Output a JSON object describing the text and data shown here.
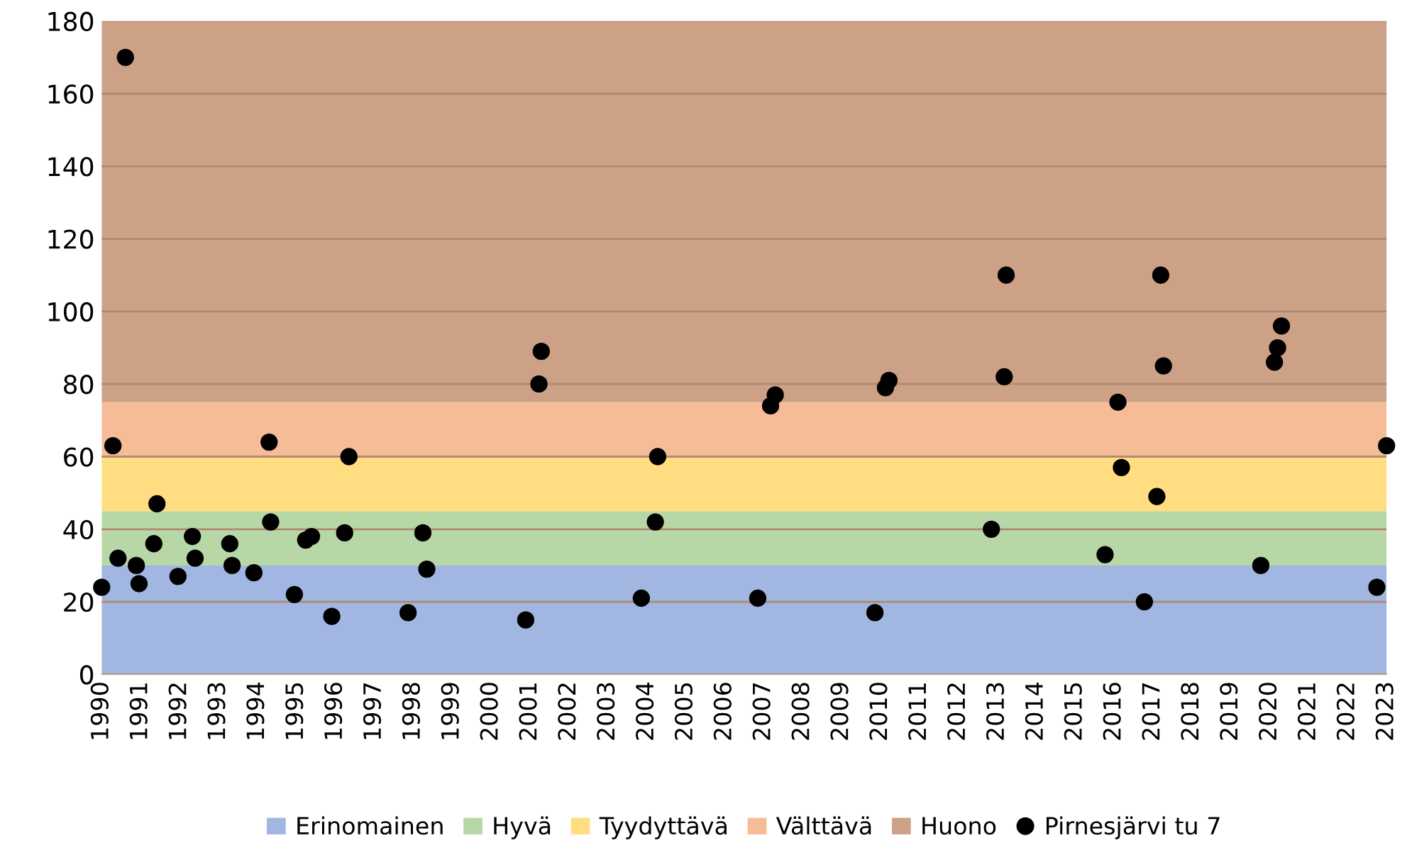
{
  "chart_data": {
    "type": "scatter",
    "series": [
      {
        "name": "Pirnesjärvi tu 7",
        "color": "#000000",
        "x": [
          1990.0,
          1990.29,
          1990.42,
          1990.61,
          1990.89,
          1990.96,
          1991.34,
          1991.42,
          1991.96,
          1992.33,
          1992.4,
          1993.29,
          1993.35,
          1993.91,
          1994.3,
          1994.34,
          1994.95,
          1995.24,
          1995.39,
          1995.91,
          1996.24,
          1996.35,
          1997.87,
          1998.25,
          1998.35,
          2000.89,
          2001.23,
          2001.29,
          2003.86,
          2004.22,
          2004.28,
          2006.85,
          2007.18,
          2007.3,
          2009.86,
          2010.13,
          2010.22,
          2012.85,
          2013.18,
          2013.23,
          2015.77,
          2016.1,
          2016.19,
          2016.78,
          2017.1,
          2017.2,
          2017.27,
          2019.77,
          2020.12,
          2020.2,
          2020.3,
          2022.75,
          2023.0
        ],
        "values": [
          24,
          63,
          32,
          170,
          30,
          25,
          36,
          47,
          27,
          38,
          32,
          36,
          30,
          28,
          64,
          42,
          22,
          37,
          38,
          16,
          39,
          60,
          17,
          39,
          29,
          15,
          80,
          89,
          21,
          42,
          60,
          21,
          74,
          77,
          17,
          79,
          81,
          40,
          82,
          110,
          33,
          75,
          57,
          20,
          49,
          110,
          85,
          30,
          86,
          90,
          96,
          24,
          63
        ]
      }
    ],
    "bands": [
      {
        "axis": "y",
        "from": 0,
        "to": 30,
        "label": "Erinomainen",
        "color": "#a1b6e0"
      },
      {
        "axis": "y",
        "from": 30,
        "to": 45,
        "label": "Hyvä",
        "color": "#b8d7a6"
      },
      {
        "axis": "y",
        "from": 45,
        "to": 60,
        "label": "Tyydyttävä",
        "color": "#ffdd80"
      },
      {
        "axis": "y",
        "from": 60,
        "to": 75,
        "label": "Välttävä",
        "color": "#f6bc98"
      },
      {
        "axis": "y",
        "from": 75,
        "to": 180,
        "label": "Huono",
        "color": "#cda186"
      }
    ],
    "xlim": [
      1990,
      2023
    ],
    "xticks": [
      1990,
      1991,
      1992,
      1993,
      1994,
      1995,
      1996,
      1997,
      1998,
      1999,
      2000,
      2001,
      2002,
      2003,
      2004,
      2005,
      2006,
      2007,
      2008,
      2009,
      2010,
      2011,
      2012,
      2013,
      2014,
      2015,
      2016,
      2017,
      2018,
      2019,
      2020,
      2021,
      2022,
      2023
    ],
    "ylim": [
      0,
      180
    ],
    "yticks": [
      0,
      20,
      40,
      60,
      80,
      100,
      120,
      140,
      160,
      180
    ],
    "grid": "y",
    "legend": "bottom",
    "marker": "circle"
  }
}
